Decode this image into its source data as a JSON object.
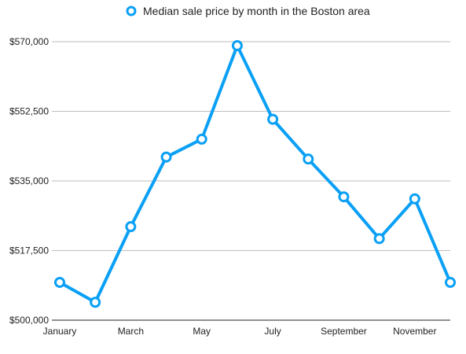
{
  "chart_data": {
    "type": "line",
    "x": [
      "January",
      "February",
      "March",
      "April",
      "May",
      "June",
      "July",
      "August",
      "September",
      "October",
      "November",
      "December"
    ],
    "x_tick_labels": [
      "January",
      "March",
      "May",
      "July",
      "September",
      "November"
    ],
    "series": [
      {
        "name": "Median sale price by month in the Boston area",
        "values": [
          509500,
          504500,
          523500,
          541000,
          545500,
          569000,
          550500,
          540500,
          531000,
          520500,
          530500,
          509500
        ]
      }
    ],
    "ylim": [
      500000,
      570000
    ],
    "y_ticks": [
      500000,
      517500,
      535000,
      552500,
      570000
    ],
    "y_tick_labels": [
      "$500,000",
      "$517,500",
      "$535,000",
      "$552,500",
      "$570,000"
    ],
    "xlabel": "",
    "ylabel": "",
    "legend_position": "top",
    "grid": true,
    "colors": {
      "series": "#0aa0f5",
      "marker_fill": "#ffffff",
      "grid": "#bdbdbd",
      "axis": "#222222"
    }
  }
}
